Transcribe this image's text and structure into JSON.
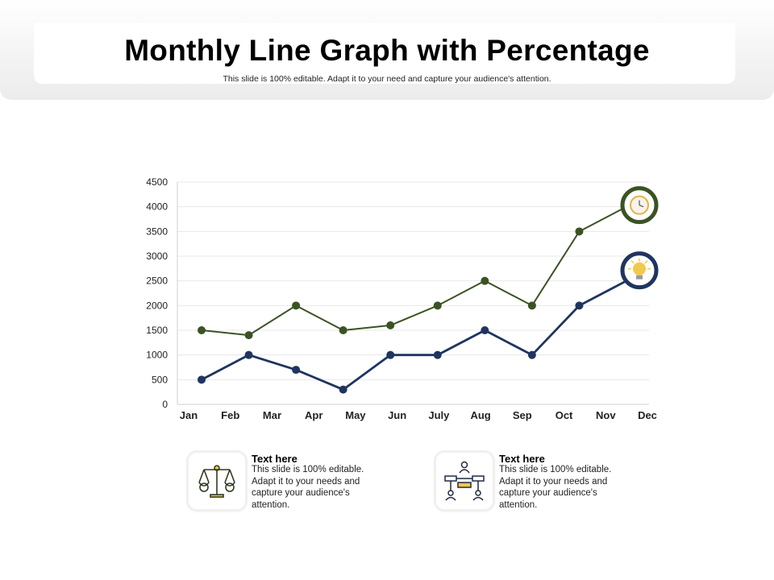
{
  "header": {
    "title": "Monthly Line Graph with Percentage",
    "subtitle": "This slide is 100% editable. Adapt it to your need and capture your audience's attention."
  },
  "colors": {
    "green_series": "#3b5323",
    "navy_series": "#1f3560",
    "gridline": "#e8e8e8",
    "axis": "#d0d0d0",
    "icon_accent": "#f2c94c"
  },
  "chart_data": {
    "type": "line",
    "categories": [
      "Jan",
      "Feb",
      "Mar",
      "Apr",
      "May",
      "Jun",
      "July",
      "Aug",
      "Sep",
      "Oct",
      "Nov",
      "Dec"
    ],
    "series": [
      {
        "color": "#3b5323",
        "values": [
          1500,
          1400,
          2000,
          1500,
          1600,
          2000,
          2500,
          2000,
          3500,
          4000,
          null,
          null
        ],
        "end_marker_icon": "clock-icon"
      },
      {
        "color": "#1f3560",
        "values": [
          500,
          1000,
          700,
          300,
          1000,
          1000,
          1500,
          1000,
          2000,
          2500,
          null,
          null
        ],
        "end_marker_icon": "lightbulb-icon"
      }
    ],
    "yticks": [
      0,
      500,
      1000,
      1500,
      2000,
      2500,
      3000,
      3500,
      4000,
      4500
    ],
    "ylim": [
      0,
      4500
    ],
    "grid": true,
    "legend": "none"
  },
  "info_boxes": [
    {
      "icon": "scales-icon",
      "title": "Text here",
      "body": "This slide is 100% editable. Adapt it to your needs and capture your audience's attention."
    },
    {
      "icon": "team-network-icon",
      "title": "Text here",
      "body": "This slide is 100% editable. Adapt it to your needs and capture your audience's attention."
    }
  ]
}
